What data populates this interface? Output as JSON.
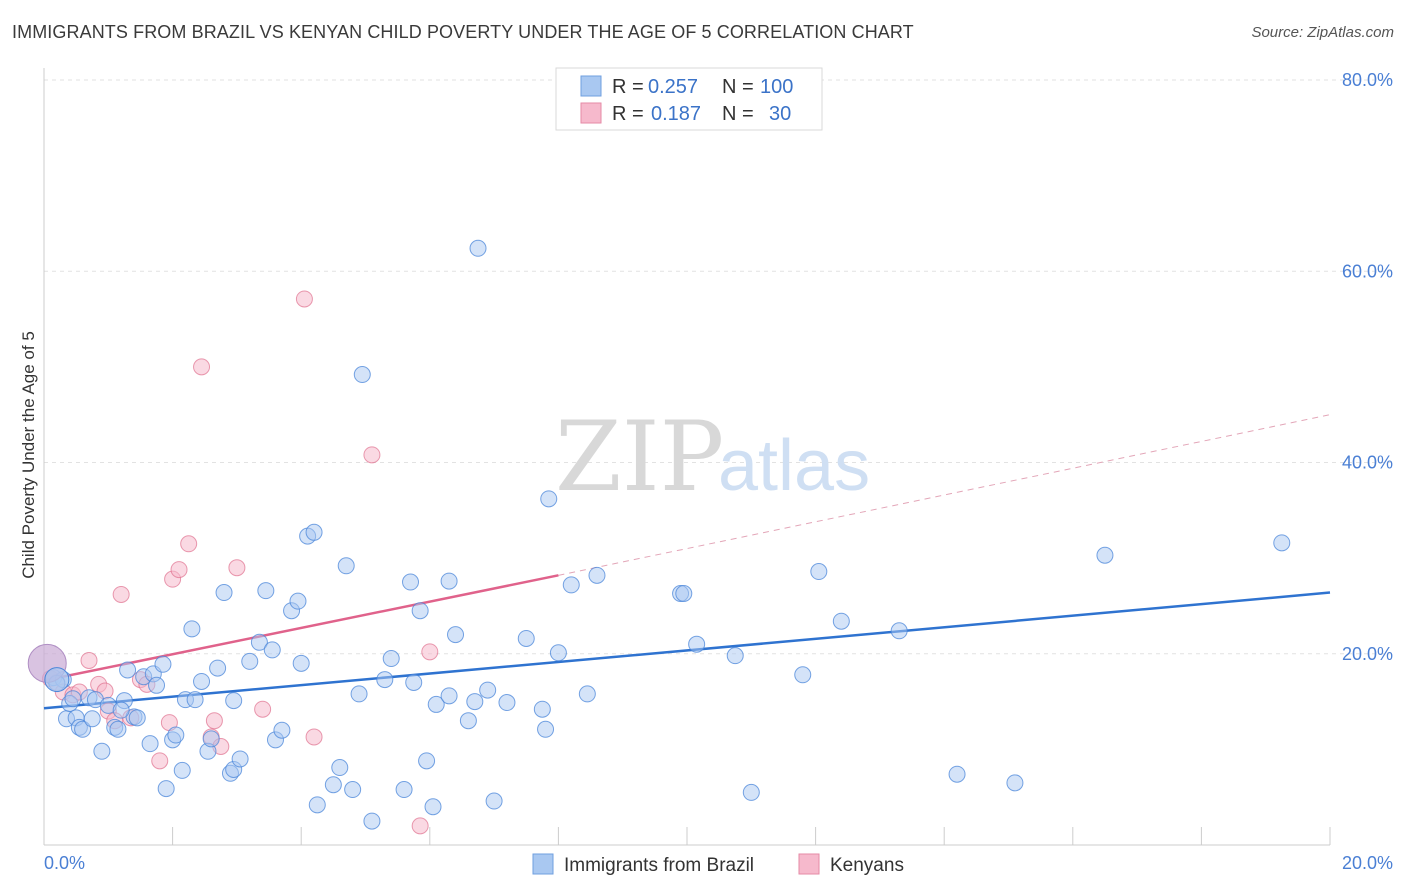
{
  "header": {
    "title": "IMMIGRANTS FROM BRAZIL VS KENYAN CHILD POVERTY UNDER THE AGE OF 5 CORRELATION CHART",
    "source": "Source: ZipAtlas.com"
  },
  "watermark": {
    "zip": "ZIP",
    "atlas": "atlas"
  },
  "legend": {
    "rows": [
      {
        "r_label": "R =",
        "r_value": "0.257",
        "n_label": "N =",
        "n_value": "100",
        "color": "#a9c8f1"
      },
      {
        "r_label": "R =",
        "r_value": "0.187",
        "n_label": "N =",
        "n_value": "30",
        "color": "#f6b9cc"
      }
    ]
  },
  "bottom_legend": {
    "items": [
      {
        "label": "Immigrants from Brazil",
        "color": "#a9c8f1"
      },
      {
        "label": "Kenyans",
        "color": "#f6b9cc"
      }
    ]
  },
  "chart_data": {
    "type": "scatter",
    "title": "IMMIGRANTS FROM BRAZIL VS KENYAN CHILD POVERTY UNDER THE AGE OF 5 CORRELATION CHART",
    "xlabel": "",
    "ylabel": "Child Poverty Under the Age of 5",
    "xlim": [
      0,
      20
    ],
    "ylim": [
      0,
      80
    ],
    "x_tick_labels": [
      "0.0%",
      "20.0%"
    ],
    "y_ticks": [
      20,
      40,
      60,
      80
    ],
    "y_tick_labels": [
      "20.0%",
      "40.0%",
      "60.0%",
      "80.0%"
    ],
    "grid": true,
    "legend_position": "top-center",
    "colors": {
      "brazil": "#4a86d9",
      "brazil_fill": "#a9c8f1",
      "kenya": "#e0708f",
      "kenya_fill": "#f6b9cc"
    },
    "series": [
      {
        "name": "Immigrants from Brazil",
        "points": [
          [
            0.15,
            17.5
          ],
          [
            0.3,
            17.3
          ],
          [
            0.35,
            13.2
          ],
          [
            0.4,
            14.8
          ],
          [
            0.5,
            13.3
          ],
          [
            0.55,
            12.3
          ],
          [
            0.6,
            12.1
          ],
          [
            0.7,
            15.4
          ],
          [
            0.75,
            13.2
          ],
          [
            0.8,
            15.2
          ],
          [
            0.9,
            9.8
          ],
          [
            1.0,
            14.6
          ],
          [
            1.1,
            12.3
          ],
          [
            1.15,
            12.1
          ],
          [
            1.25,
            15.1
          ],
          [
            1.3,
            18.3
          ],
          [
            1.4,
            13.4
          ],
          [
            1.45,
            13.3
          ],
          [
            1.55,
            17.6
          ],
          [
            1.65,
            10.6
          ],
          [
            1.7,
            17.9
          ],
          [
            1.75,
            16.7
          ],
          [
            1.85,
            18.9
          ],
          [
            1.9,
            5.9
          ],
          [
            2.0,
            11.0
          ],
          [
            2.05,
            11.5
          ],
          [
            2.15,
            7.8
          ],
          [
            2.2,
            15.2
          ],
          [
            2.3,
            22.6
          ],
          [
            2.35,
            15.2
          ],
          [
            2.45,
            17.1
          ],
          [
            2.55,
            9.8
          ],
          [
            2.6,
            11.1
          ],
          [
            2.7,
            18.5
          ],
          [
            2.8,
            26.4
          ],
          [
            2.9,
            7.5
          ],
          [
            2.95,
            7.9
          ],
          [
            3.05,
            9.0
          ],
          [
            3.2,
            19.2
          ],
          [
            3.35,
            21.2
          ],
          [
            3.45,
            26.6
          ],
          [
            3.55,
            20.4
          ],
          [
            3.6,
            11.0
          ],
          [
            3.7,
            12.0
          ],
          [
            3.85,
            24.5
          ],
          [
            3.95,
            25.5
          ],
          [
            4.0,
            19.0
          ],
          [
            4.1,
            32.3
          ],
          [
            4.2,
            32.7
          ],
          [
            4.25,
            4.2
          ],
          [
            4.5,
            6.3
          ],
          [
            4.6,
            8.1
          ],
          [
            4.7,
            29.2
          ],
          [
            4.8,
            5.8
          ],
          [
            4.9,
            15.8
          ],
          [
            4.95,
            49.2
          ],
          [
            5.1,
            2.5
          ],
          [
            5.3,
            17.3
          ],
          [
            5.4,
            19.5
          ],
          [
            5.6,
            5.8
          ],
          [
            5.7,
            27.5
          ],
          [
            5.75,
            17.0
          ],
          [
            5.85,
            24.5
          ],
          [
            5.95,
            8.8
          ],
          [
            6.05,
            4.0
          ],
          [
            6.1,
            14.7
          ],
          [
            6.3,
            15.6
          ],
          [
            6.3,
            27.6
          ],
          [
            6.4,
            22.0
          ],
          [
            6.6,
            13.0
          ],
          [
            6.7,
            15.0
          ],
          [
            6.75,
            62.4
          ],
          [
            6.9,
            16.2
          ],
          [
            7.0,
            4.6
          ],
          [
            7.2,
            14.9
          ],
          [
            7.5,
            21.6
          ],
          [
            7.75,
            14.2
          ],
          [
            7.8,
            12.1
          ],
          [
            7.85,
            36.2
          ],
          [
            8.0,
            20.1
          ],
          [
            8.2,
            27.2
          ],
          [
            8.45,
            15.8
          ],
          [
            8.6,
            28.2
          ],
          [
            9.9,
            26.3
          ],
          [
            9.95,
            26.3
          ],
          [
            10.15,
            21.0
          ],
          [
            10.75,
            19.8
          ],
          [
            11.0,
            5.5
          ],
          [
            11.8,
            17.8
          ],
          [
            12.05,
            28.6
          ],
          [
            12.4,
            23.4
          ],
          [
            13.3,
            22.4
          ],
          [
            14.2,
            7.4
          ],
          [
            15.1,
            6.5
          ],
          [
            16.5,
            30.3
          ],
          [
            19.25,
            31.6
          ],
          [
            0.2,
            16.9
          ],
          [
            0.45,
            15.3
          ],
          [
            1.2,
            14.1
          ],
          [
            2.95,
            15.1
          ]
        ],
        "trend": {
          "x": [
            0,
            20
          ],
          "y": [
            14.3,
            26.4
          ]
        }
      },
      {
        "name": "Kenyans",
        "points": [
          [
            0.1,
            17.4
          ],
          [
            0.2,
            17.0
          ],
          [
            0.3,
            16.0
          ],
          [
            0.45,
            15.7
          ],
          [
            0.55,
            16.0
          ],
          [
            0.7,
            19.3
          ],
          [
            0.85,
            16.8
          ],
          [
            0.95,
            16.1
          ],
          [
            1.0,
            14.0
          ],
          [
            1.1,
            13.0
          ],
          [
            1.2,
            26.2
          ],
          [
            1.35,
            13.3
          ],
          [
            1.5,
            17.3
          ],
          [
            1.6,
            16.8
          ],
          [
            1.8,
            8.8
          ],
          [
            1.95,
            12.8
          ],
          [
            2.0,
            27.8
          ],
          [
            2.1,
            28.8
          ],
          [
            2.25,
            31.5
          ],
          [
            2.45,
            50.0
          ],
          [
            2.6,
            11.3
          ],
          [
            2.65,
            13.0
          ],
          [
            2.75,
            10.3
          ],
          [
            3.0,
            29.0
          ],
          [
            3.4,
            14.2
          ],
          [
            4.05,
            57.1
          ],
          [
            4.2,
            11.3
          ],
          [
            5.1,
            40.8
          ],
          [
            5.85,
            2.0
          ],
          [
            6.0,
            20.2
          ]
        ],
        "trend": {
          "x": [
            0,
            8.0
          ],
          "y": [
            17.2,
            28.2
          ]
        },
        "trend_extension": {
          "x": [
            8.0,
            20
          ],
          "y": [
            28.2,
            45.0
          ]
        }
      }
    ],
    "large_markers": [
      {
        "series": "Kenyans",
        "x": 0.05,
        "y": 19.0
      },
      {
        "series": "Immigrants from Brazil",
        "x": 0.2,
        "y": 17.3
      }
    ]
  }
}
